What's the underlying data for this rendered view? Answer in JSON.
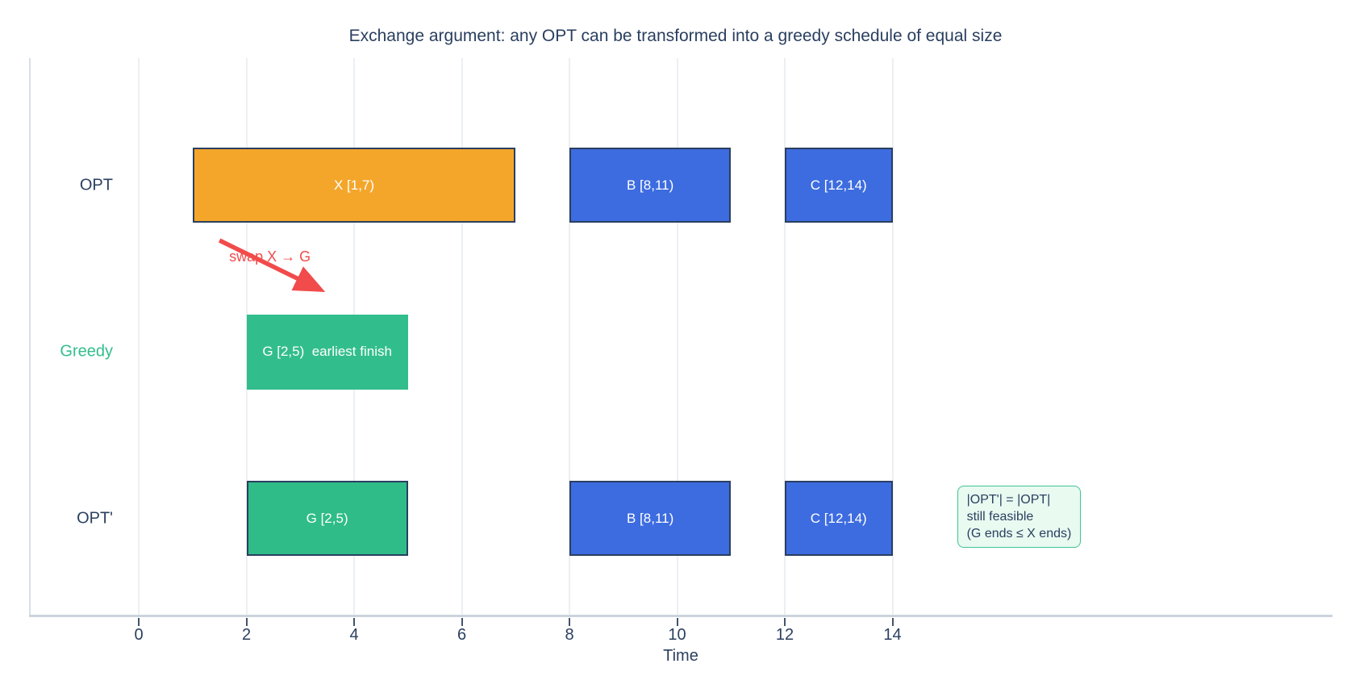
{
  "title": "Exchange argument: any OPT can be transformed into a greedy schedule of equal size",
  "colors": {
    "navy_text": "#2A3F5F",
    "orange": "#F4A62B",
    "blue": "#3D6CE0",
    "green": "#32BE8C",
    "green_dark": "#2FBC88",
    "red": "#F14B4B",
    "gridline": "#ECEFF3",
    "axis_line": "#CBD4DE",
    "annotation_bg": "#E9FAF1",
    "annotation_border": "#3EC593"
  },
  "chart_data": {
    "type": "bar",
    "subtype": "gantt-timeline",
    "title": "Exchange argument: any OPT can be transformed into a greedy schedule of equal size",
    "xlabel": "Time",
    "x_ticks": [
      0,
      2,
      4,
      6,
      8,
      10,
      12,
      14
    ],
    "xlim": [
      -2,
      22.2
    ],
    "grid": "vertical-at-ticks-only",
    "rows": [
      {
        "name": "OPT",
        "label_color": "#2A3F5F",
        "bars": [
          {
            "label": "X [1,7)",
            "start": 1,
            "end": 7,
            "color": "orange",
            "border": true
          },
          {
            "label": "B [8,11)",
            "start": 8,
            "end": 11,
            "color": "blue",
            "border": true
          },
          {
            "label": "C [12,14)",
            "start": 12,
            "end": 14,
            "color": "blue",
            "border": true
          }
        ]
      },
      {
        "name": "Greedy",
        "label_color": "#32BE8C",
        "bars": [
          {
            "label": "G [2,5)  earliest finish",
            "start": 2,
            "end": 5,
            "color": "green",
            "border": false
          }
        ]
      },
      {
        "name": "OPT'",
        "label_color": "#2A3F5F",
        "bars": [
          {
            "label": "G [2,5)",
            "start": 2,
            "end": 5,
            "color": "green_dark",
            "border": true
          },
          {
            "label": "B [8,11)",
            "start": 8,
            "end": 11,
            "color": "blue",
            "border": true
          },
          {
            "label": "C [12,14)",
            "start": 12,
            "end": 14,
            "color": "blue",
            "border": true
          }
        ]
      }
    ],
    "annotations": {
      "swap": {
        "text": "swap X → G",
        "color": "#F14B4B",
        "arrow_start_t": 1.5,
        "arrow_end_t": 3.28,
        "label_t": 1.68
      },
      "result_box": {
        "lines": [
          "|OPT'| = |OPT|",
          "still feasible",
          "(G ends ≤ X ends)"
        ],
        "t": 15.2
      }
    }
  }
}
